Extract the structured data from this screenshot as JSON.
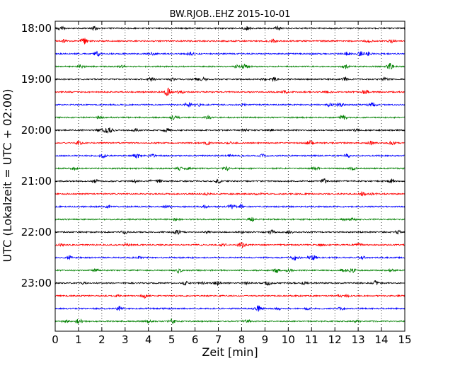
{
  "chart_data": {
    "type": "line",
    "title": "BW.RJOB..EHZ 2015-10-01",
    "xlabel": "Zeit  [min]",
    "ylabel": "UTC (Lokalzeit = UTC + 02:00)",
    "xlim": [
      0,
      15
    ],
    "x_ticks": [
      "0",
      "1",
      "2",
      "3",
      "4",
      "5",
      "6",
      "7",
      "8",
      "9",
      "10",
      "11",
      "12",
      "13",
      "14",
      "15"
    ],
    "y_ticks": [
      "18:00",
      "19:00",
      "20:00",
      "21:00",
      "22:00",
      "23:00"
    ],
    "grid": "vertical-dotted",
    "colors": [
      "#000000",
      "#ff0000",
      "#0000ff",
      "#008000"
    ],
    "series": [
      {
        "start": "18:00",
        "color": "#000000"
      },
      {
        "start": "18:15",
        "color": "#ff0000"
      },
      {
        "start": "18:30",
        "color": "#0000ff"
      },
      {
        "start": "18:45",
        "color": "#008000"
      },
      {
        "start": "19:00",
        "color": "#000000"
      },
      {
        "start": "19:15",
        "color": "#ff0000"
      },
      {
        "start": "19:30",
        "color": "#0000ff"
      },
      {
        "start": "19:45",
        "color": "#008000"
      },
      {
        "start": "20:00",
        "color": "#000000"
      },
      {
        "start": "20:15",
        "color": "#ff0000"
      },
      {
        "start": "20:30",
        "color": "#0000ff"
      },
      {
        "start": "20:45",
        "color": "#008000"
      },
      {
        "start": "21:00",
        "color": "#000000"
      },
      {
        "start": "21:15",
        "color": "#ff0000"
      },
      {
        "start": "21:30",
        "color": "#0000ff"
      },
      {
        "start": "21:45",
        "color": "#008000"
      },
      {
        "start": "22:00",
        "color": "#000000"
      },
      {
        "start": "22:15",
        "color": "#ff0000"
      },
      {
        "start": "22:30",
        "color": "#0000ff"
      },
      {
        "start": "22:45",
        "color": "#008000"
      },
      {
        "start": "23:00",
        "color": "#000000"
      },
      {
        "start": "23:15",
        "color": "#ff0000"
      },
      {
        "start": "23:30",
        "color": "#0000ff"
      },
      {
        "start": "23:45",
        "color": "#008000"
      }
    ]
  }
}
